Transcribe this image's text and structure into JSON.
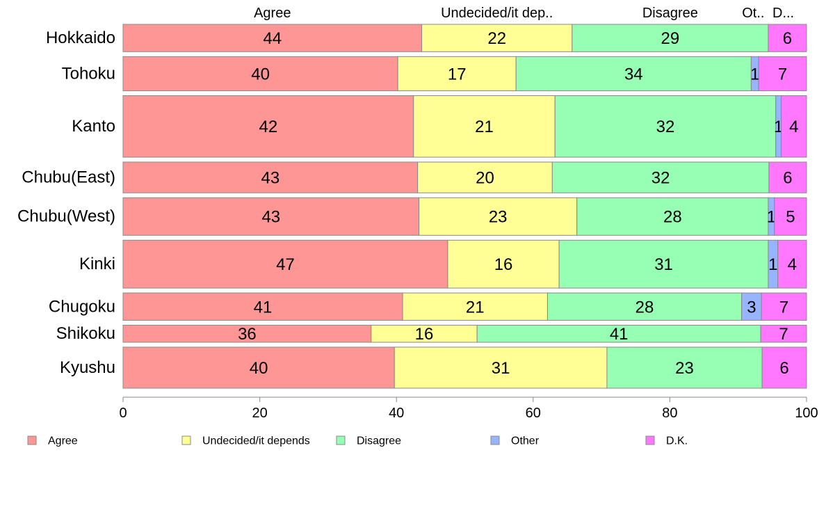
{
  "chart_data": {
    "type": "bar",
    "orientation": "horizontal",
    "stacked": true,
    "title": "",
    "xlabel": "",
    "ylabel": "",
    "xlim": [
      0,
      100
    ],
    "x_ticks": [
      0,
      20,
      40,
      60,
      80,
      100
    ],
    "grid": false,
    "legend_position": "bottom",
    "column_headers": [
      "Agree",
      "Undecided/it dep..",
      "Disagree",
      "Ot..",
      "D..."
    ],
    "categories": [
      "Hokkaido",
      "Tohoku",
      "Kanto",
      "Chubu(East)",
      "Chubu(West)",
      "Kinki",
      "Chugoku",
      "Shikoku",
      "Kyushu"
    ],
    "bar_weights": [
      0.8,
      1.0,
      1.8,
      0.9,
      1.1,
      1.4,
      0.8,
      0.5,
      1.2
    ],
    "series": [
      {
        "name": "Agree",
        "color": "#ff9696",
        "values": [
          43.7,
          40.2,
          42.5,
          43.1,
          43.3,
          47.5,
          40.9,
          36.3,
          39.7
        ],
        "labels": [
          "44",
          "40",
          "42",
          "43",
          "43",
          "47",
          "41",
          "36",
          "40"
        ]
      },
      {
        "name": "Undecided/it depends",
        "color": "#ffff96",
        "values": [
          22.0,
          17.3,
          20.7,
          19.7,
          23.1,
          16.3,
          21.2,
          15.5,
          31.1
        ],
        "labels": [
          "22",
          "17",
          "21",
          "20",
          "23",
          "16",
          "21",
          "16",
          "31"
        ]
      },
      {
        "name": "Disagree",
        "color": "#96ffb4",
        "values": [
          28.7,
          34.4,
          32.3,
          31.7,
          28.0,
          30.6,
          28.4,
          41.5,
          22.7
        ],
        "labels": [
          "29",
          "34",
          "32",
          "32",
          "28",
          "31",
          "28",
          "41",
          "23"
        ]
      },
      {
        "name": "Other",
        "color": "#96b4ff",
        "values": [
          0,
          1.1,
          0.8,
          0,
          0.9,
          1.4,
          2.9,
          0,
          0
        ],
        "labels": [
          "",
          "1",
          "1",
          "",
          "1",
          "1",
          "3",
          "",
          ""
        ]
      },
      {
        "name": "D.K.",
        "color": "#ff78ff",
        "values": [
          5.6,
          7.0,
          3.7,
          5.5,
          4.7,
          4.2,
          6.6,
          6.7,
          6.5
        ],
        "labels": [
          "6",
          "7",
          "4",
          "6",
          "5",
          "4",
          "7",
          "7",
          "6"
        ]
      }
    ]
  }
}
